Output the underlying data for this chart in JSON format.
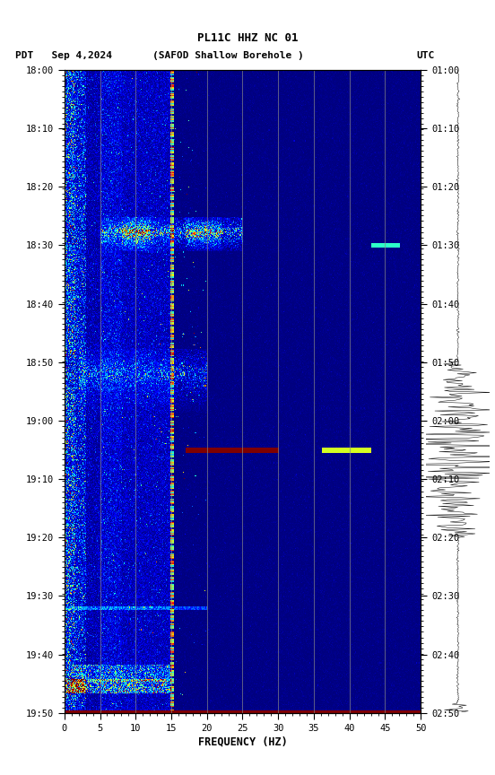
{
  "title_line1": "PL11C HHZ NC 01",
  "title_line2_left": "PDT   Sep 4,2024",
  "title_line2_center": "(SAFOD Shallow Borehole )",
  "title_line2_right": "UTC",
  "xlabel": "FREQUENCY (HZ)",
  "ylabel_left_times": [
    "18:00",
    "18:10",
    "18:20",
    "18:30",
    "18:40",
    "18:50",
    "19:00",
    "19:10",
    "19:20",
    "19:30",
    "19:40",
    "19:50"
  ],
  "ylabel_right_times": [
    "01:00",
    "01:10",
    "01:20",
    "01:30",
    "01:40",
    "01:50",
    "02:00",
    "02:10",
    "02:20",
    "02:30",
    "02:40",
    "02:50"
  ],
  "freq_min": 0,
  "freq_max": 50,
  "freq_ticks": [
    0,
    5,
    10,
    15,
    20,
    25,
    30,
    35,
    40,
    45,
    50
  ],
  "n_freq_bins": 500,
  "n_time_bins": 660,
  "background_color": "#ffffff",
  "colormap": "jet",
  "fig_width": 5.52,
  "fig_height": 8.64,
  "dpi": 100
}
